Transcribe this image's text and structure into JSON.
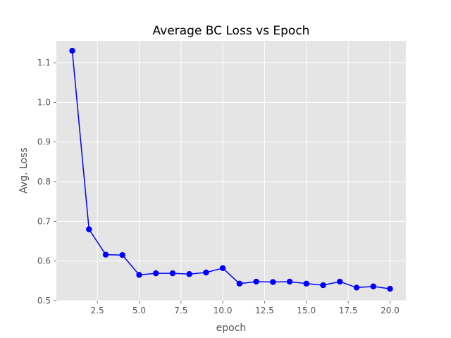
{
  "chart_data": {
    "type": "line",
    "title": "Average BC Loss vs Epoch",
    "xlabel": "epoch",
    "ylabel": "Avg. Loss",
    "xlim": [
      0.05,
      20.95
    ],
    "ylim": [
      0.5,
      1.155
    ],
    "xticks": [
      2.5,
      5.0,
      7.5,
      10.0,
      12.5,
      15.0,
      17.5,
      20.0
    ],
    "xtick_labels": [
      "2.5",
      "5.0",
      "7.5",
      "10.0",
      "12.5",
      "15.0",
      "17.5",
      "20.0"
    ],
    "yticks": [
      0.5,
      0.6,
      0.7,
      0.8,
      0.9,
      1.0,
      1.1
    ],
    "ytick_labels": [
      "0.5",
      "0.6",
      "0.7",
      "0.8",
      "0.9",
      "1.0",
      "1.1"
    ],
    "grid": true,
    "series": [
      {
        "color": "#0000ff",
        "marker": "circle",
        "x": [
          1,
          2,
          3,
          4,
          5,
          6,
          7,
          8,
          9,
          10,
          11,
          12,
          13,
          14,
          15,
          16,
          17,
          18,
          19,
          20
        ],
        "y": [
          1.13,
          0.68,
          0.616,
          0.615,
          0.565,
          0.569,
          0.569,
          0.567,
          0.571,
          0.582,
          0.543,
          0.548,
          0.547,
          0.548,
          0.543,
          0.539,
          0.548,
          0.533,
          0.536,
          0.53
        ]
      }
    ]
  }
}
